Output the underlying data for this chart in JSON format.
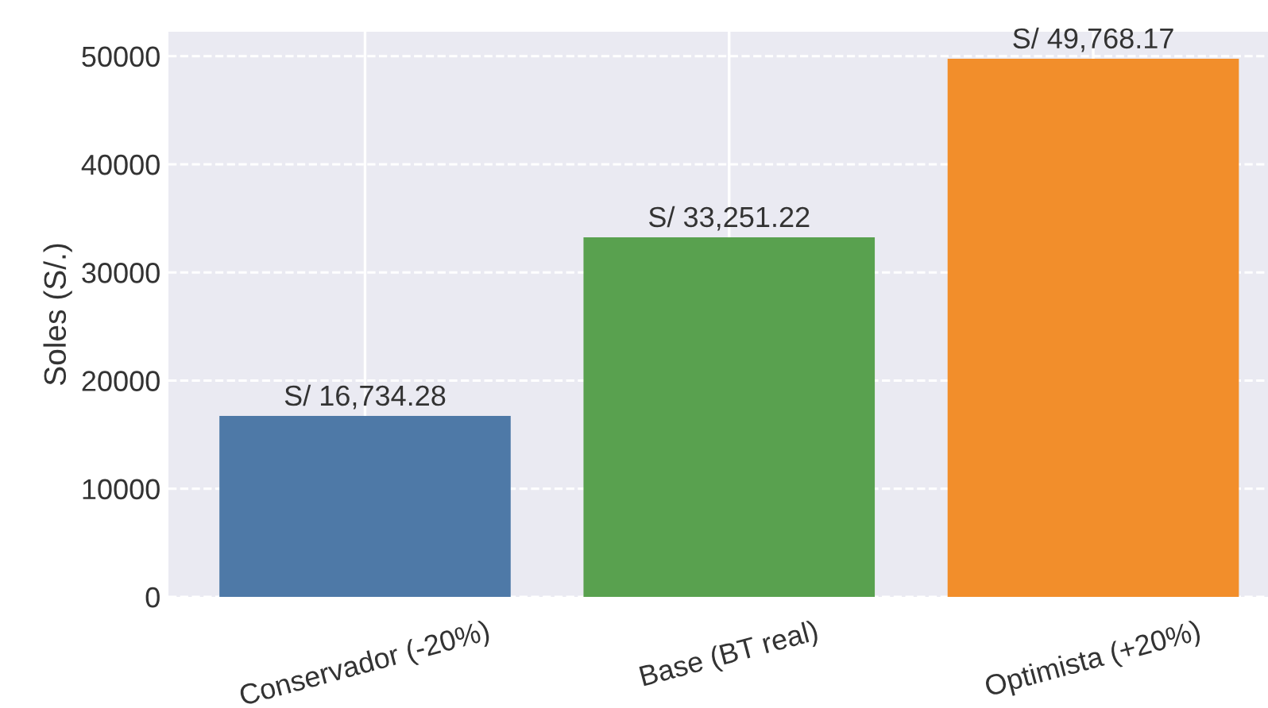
{
  "chart_data": {
    "type": "bar",
    "ylabel": "Soles (S/.)",
    "categories": [
      "Conservador (-20%)",
      "Base (BT real)",
      "Optimista (+20%)"
    ],
    "values": [
      16734.28,
      33251.22,
      49768.17
    ],
    "colors": [
      "#4e79a7",
      "#59a14f",
      "#f28e2b"
    ],
    "value_labels": [
      "S/ 16,734.28",
      "S/ 33,251.22",
      "S/ 49,768.17"
    ],
    "ylim": [
      0,
      52256
    ],
    "yticks": [
      0,
      10000,
      20000,
      30000,
      40000,
      50000
    ],
    "grid": true
  }
}
